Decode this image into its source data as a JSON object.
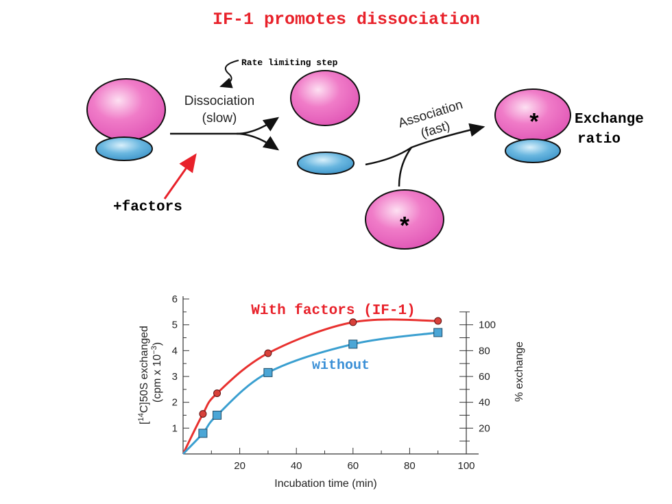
{
  "title": "IF-1 promotes dissociation",
  "diagram": {
    "rate_limiting_label": "Rate limiting step",
    "dissociation_label": "Dissociation",
    "dissociation_sub": "(slow)",
    "association_label": "Association",
    "association_sub": "(fast)",
    "factors_label": "+factors",
    "exchange_label_1": "Exchange",
    "exchange_label_2": "ratio",
    "star": "*",
    "colors": {
      "large_subunit": "#f07cc8",
      "small_subunit": "#4aa3d6",
      "factor_arrow": "#e8212a"
    }
  },
  "chart_data": {
    "type": "line",
    "xlabel": "Incubation time (min)",
    "ylabel_line1": "[14C]50S exchanged",
    "ylabel_line2": "(cpm x 10-3)",
    "y2label": "% exchange",
    "xlim": [
      0,
      100
    ],
    "ylim": [
      0,
      6
    ],
    "y2lim": [
      0,
      120
    ],
    "x_ticks": [
      "20",
      "40",
      "60",
      "80",
      "100"
    ],
    "y_ticks": [
      "1",
      "2",
      "3",
      "4",
      "5",
      "6"
    ],
    "y2_ticks": [
      "20",
      "40",
      "60",
      "80",
      "100"
    ],
    "series": [
      {
        "name": "With factors (IF-1)",
        "color": "#e8312f",
        "marker": "circle",
        "x": [
          7,
          12,
          30,
          60,
          90
        ],
        "y": [
          1.55,
          2.35,
          3.9,
          5.1,
          5.15
        ]
      },
      {
        "name": "without",
        "color": "#3a9fd0",
        "marker": "square",
        "x": [
          7,
          12,
          30,
          60,
          90
        ],
        "y": [
          0.8,
          1.5,
          3.15,
          4.25,
          4.7
        ]
      }
    ]
  }
}
